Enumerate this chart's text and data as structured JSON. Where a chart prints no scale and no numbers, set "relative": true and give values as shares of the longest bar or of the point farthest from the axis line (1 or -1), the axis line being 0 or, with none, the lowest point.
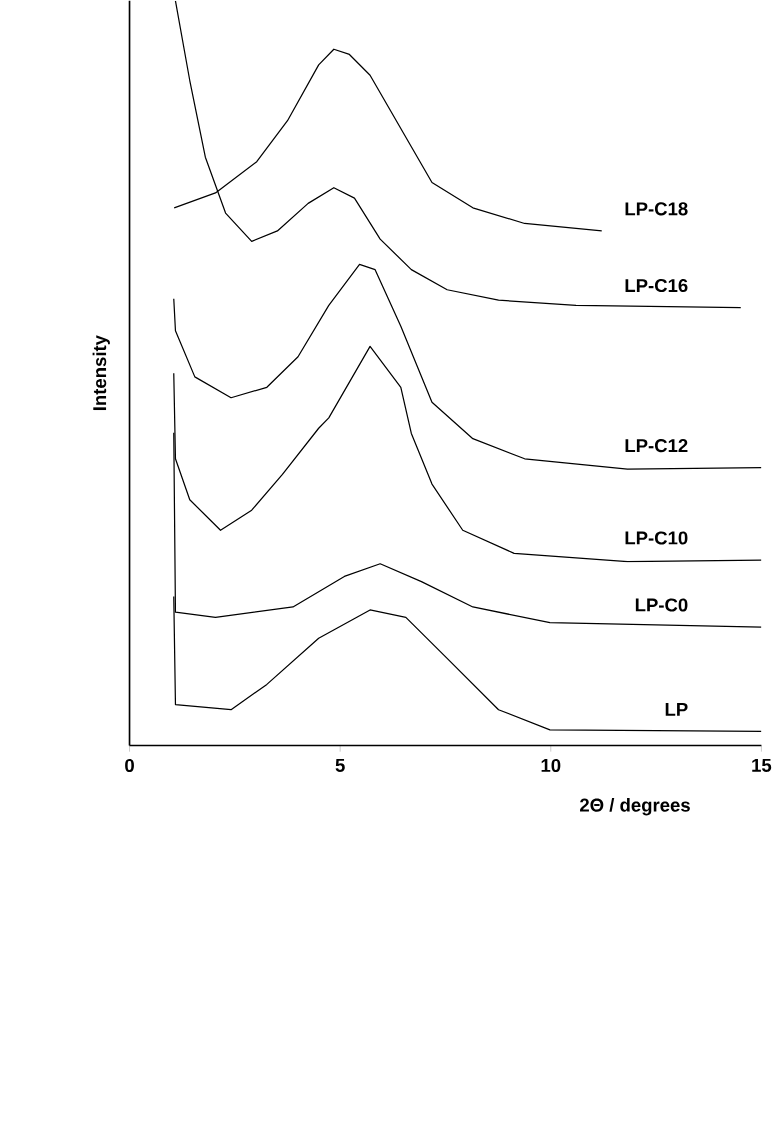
{
  "chart_data": {
    "type": "line",
    "relative": true,
    "xlabel": "2Θ / degrees",
    "ylabel": "Intensity",
    "xlim": [
      0,
      15
    ],
    "xticks": [
      0,
      5,
      10,
      15
    ],
    "marker": "none",
    "line_style": "solid",
    "series": [
      {
        "name": "LP-C18",
        "color": "#000000",
        "x": [
          1.06,
          2.04,
          3.02,
          3.75,
          4.49,
          4.85,
          5.22,
          5.71,
          6.2,
          6.69,
          7.18,
          8.15,
          9.38,
          11.21
        ],
        "values": [
          0.722,
          0.742,
          0.784,
          0.839,
          0.914,
          0.935,
          0.928,
          0.9,
          0.852,
          0.804,
          0.756,
          0.722,
          0.701,
          0.691
        ]
      },
      {
        "name": "LP-C16",
        "color": "#000000",
        "x": [
          1.09,
          1.43,
          1.8,
          2.28,
          2.9,
          3.51,
          4.24,
          4.85,
          5.34,
          5.95,
          6.69,
          7.54,
          8.76,
          10.6,
          14.51
        ],
        "values": [
          1.0,
          0.893,
          0.79,
          0.715,
          0.677,
          0.691,
          0.728,
          0.749,
          0.735,
          0.68,
          0.639,
          0.612,
          0.598,
          0.591,
          0.588
        ]
      },
      {
        "name": "LP-C12",
        "color": "#000000",
        "x": [
          1.05,
          1.09,
          1.55,
          2.41,
          3.26,
          4.0,
          4.73,
          5.46,
          5.83,
          6.44,
          7.18,
          8.15,
          9.38,
          11.82,
          15.0
        ],
        "values": [
          0.6,
          0.557,
          0.495,
          0.467,
          0.481,
          0.522,
          0.591,
          0.646,
          0.639,
          0.563,
          0.461,
          0.412,
          0.385,
          0.371,
          0.373
        ]
      },
      {
        "name": "LP-C10",
        "color": "#000000",
        "x": [
          1.05,
          1.09,
          1.43,
          2.16,
          2.9,
          3.63,
          4.49,
          4.73,
          5.71,
          6.44,
          6.69,
          7.18,
          7.91,
          9.13,
          11.82,
          15.0
        ],
        "values": [
          0.5,
          0.385,
          0.33,
          0.289,
          0.316,
          0.364,
          0.426,
          0.44,
          0.536,
          0.481,
          0.419,
          0.351,
          0.289,
          0.258,
          0.247,
          0.249
        ]
      },
      {
        "name": "LP-C0",
        "color": "#000000",
        "x": [
          1.05,
          1.09,
          2.04,
          3.88,
          5.1,
          5.95,
          6.93,
          8.15,
          9.98,
          15.0
        ],
        "values": [
          0.42,
          0.179,
          0.172,
          0.186,
          0.227,
          0.244,
          0.22,
          0.186,
          0.165,
          0.159
        ]
      },
      {
        "name": "LP",
        "color": "#000000",
        "x": [
          1.05,
          1.09,
          2.41,
          3.26,
          4.49,
          5.71,
          6.56,
          7.54,
          8.76,
          9.98,
          15.0
        ],
        "values": [
          0.2,
          0.055,
          0.048,
          0.082,
          0.144,
          0.182,
          0.172,
          0.117,
          0.048,
          0.021,
          0.019
        ]
      }
    ]
  }
}
